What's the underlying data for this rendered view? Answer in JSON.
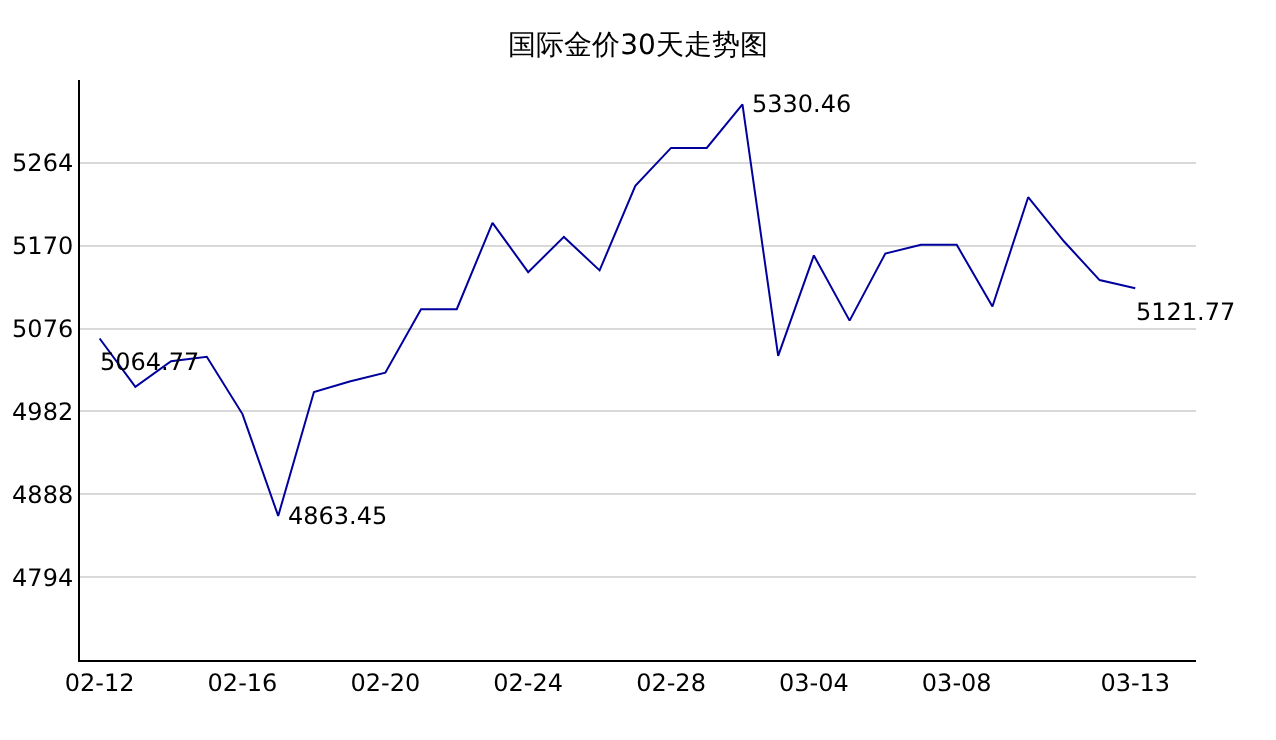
{
  "chart_data": {
    "type": "line",
    "title": "国际金价30天走势图",
    "categories": [
      "02-12",
      null,
      null,
      null,
      "02-16",
      null,
      null,
      null,
      "02-20",
      null,
      null,
      null,
      "02-24",
      null,
      null,
      null,
      "02-28",
      null,
      null,
      null,
      "03-04",
      null,
      null,
      null,
      "03-08",
      null,
      null,
      null,
      null,
      "03-13"
    ],
    "series": [
      {
        "color": "#00009c",
        "values": [
          5064.77,
          5010,
          5039,
          5044,
          4979,
          4863.45,
          5004,
          5016,
          5026,
          5098,
          5098,
          5196,
          5140,
          5180,
          5142,
          5238,
          5281,
          5281,
          5330.46,
          5045,
          5159,
          5085,
          5161,
          5171,
          5171,
          5101,
          5225,
          5175,
          5131,
          5121.77
        ],
        "value_labels": [
          "5064.77",
          null,
          null,
          null,
          null,
          "4863.45",
          null,
          null,
          null,
          null,
          null,
          null,
          null,
          null,
          null,
          null,
          null,
          null,
          "5330.46",
          null,
          null,
          null,
          null,
          null,
          null,
          null,
          null,
          null,
          null,
          "5121.77"
        ]
      }
    ],
    "ylim": [
      4700,
      5358
    ],
    "yticks": [
      4794,
      4888,
      4982,
      5076,
      5170,
      5264
    ],
    "grid": "y",
    "marker": "none",
    "line_style": "solid"
  }
}
